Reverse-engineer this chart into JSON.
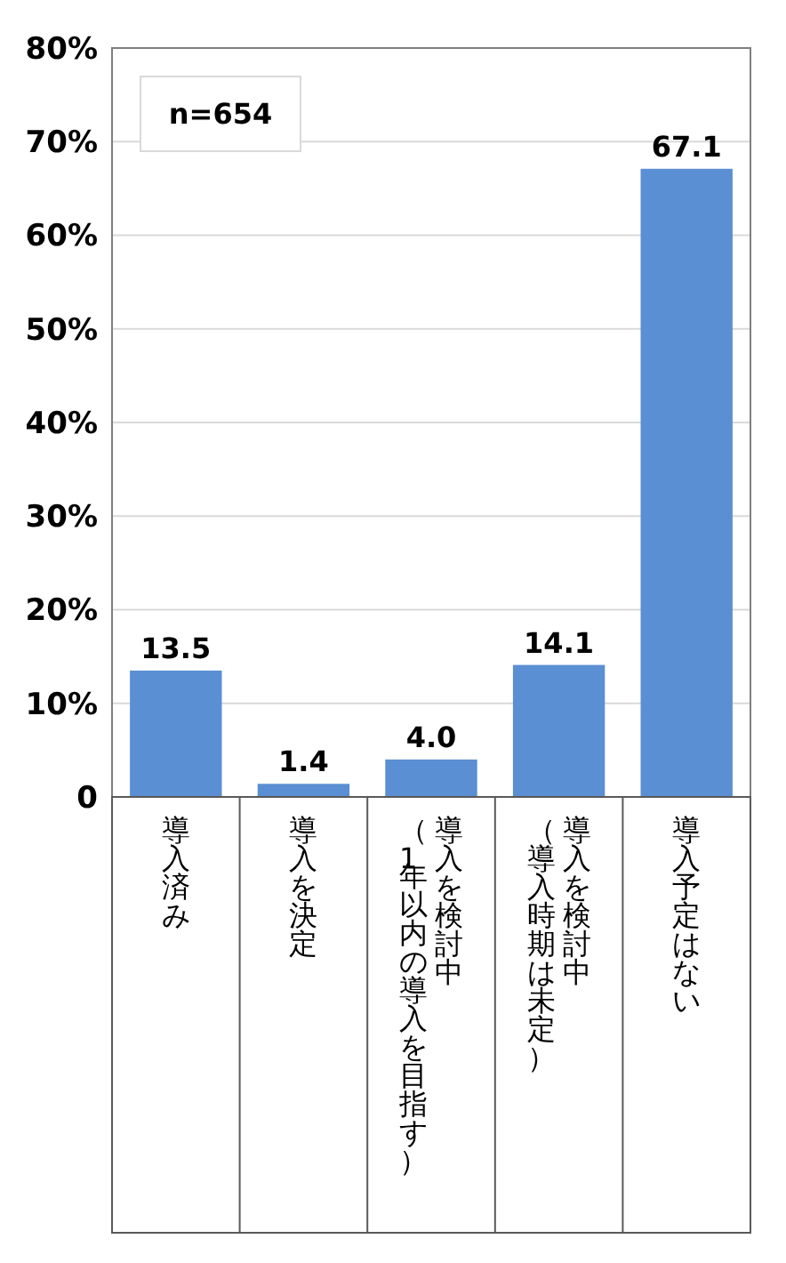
{
  "chart_data": {
    "type": "bar",
    "categories": [
      "導入済み",
      "導入を決定",
      "導入を検討中（1年以内の導入を目指す）",
      "導入を検討中（導入時期は未定）",
      "導入予定はない"
    ],
    "values": [
      13.5,
      1.4,
      4.0,
      14.1,
      67.1
    ],
    "color": "#5b8fd3",
    "value_labels": [
      "13.5",
      "1.4",
      "4.0",
      "14.1",
      "67.1"
    ],
    "ylim": [
      0,
      80
    ],
    "yticks": [
      {
        "value": 0,
        "label": "0"
      },
      {
        "value": 10,
        "label": "10%"
      },
      {
        "value": 20,
        "label": "20%"
      },
      {
        "value": 30,
        "label": "30%"
      },
      {
        "value": 40,
        "label": "40%"
      },
      {
        "value": 50,
        "label": "50%"
      },
      {
        "value": 60,
        "label": "60%"
      },
      {
        "value": 70,
        "label": "70%"
      },
      {
        "value": 80,
        "label": "80%"
      }
    ],
    "grid": "y",
    "annotations": [
      "n=654"
    ]
  }
}
